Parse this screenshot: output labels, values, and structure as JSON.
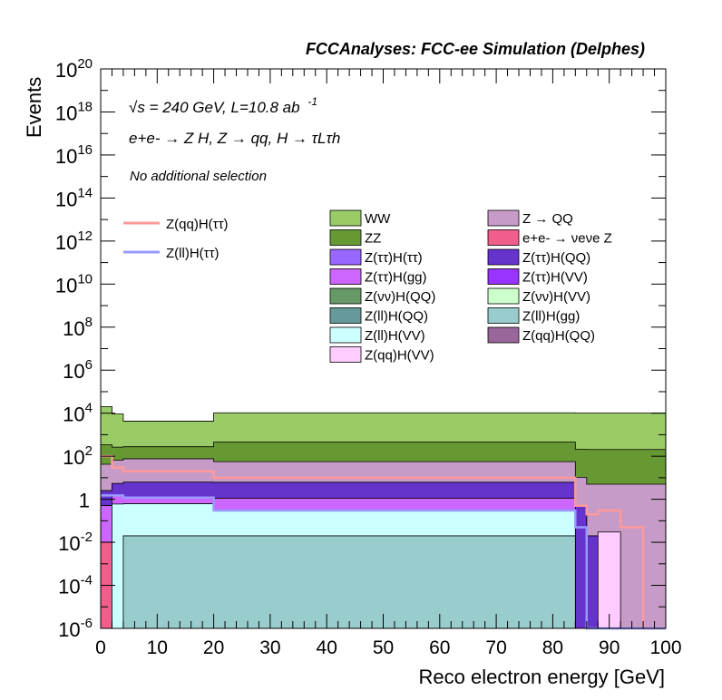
{
  "chart_data": {
    "type": "area",
    "title": "FCCAnalyses: FCC-ee Simulation (Delphes)",
    "xlabel": "Reco electron energy [GeV]",
    "ylabel": "Events",
    "xlim": [
      0,
      100
    ],
    "ylim": [
      1e-06,
      1e+20
    ],
    "yscale": "log",
    "x_ticks": [
      "0",
      "10",
      "20",
      "30",
      "40",
      "50",
      "60",
      "70",
      "80",
      "90",
      "100"
    ],
    "y_ticks": [
      {
        "base": "10",
        "exp": "20"
      },
      {
        "base": "10",
        "exp": "18"
      },
      {
        "base": "10",
        "exp": "16"
      },
      {
        "base": "10",
        "exp": "14"
      },
      {
        "base": "10",
        "exp": "12"
      },
      {
        "base": "10",
        "exp": "10"
      },
      {
        "base": "10",
        "exp": "8"
      },
      {
        "base": "10",
        "exp": "6"
      },
      {
        "base": "10",
        "exp": "4"
      },
      {
        "base": "10",
        "exp": "2"
      },
      {
        "base": "1",
        "exp": ""
      },
      {
        "base": "10",
        "exp": "-2"
      },
      {
        "base": "10",
        "exp": "-4"
      },
      {
        "base": "10",
        "exp": "-6"
      }
    ],
    "annotations": {
      "energy_lumi": "√s = 240 GeV, L=10.8 ab",
      "energy_lumi_exp": "-1",
      "process": "e+e- → Z H, Z → qq, H → τLτh",
      "selection": "No additional selection"
    },
    "legend_stack": [
      {
        "label": "WW",
        "color": "#99cc66"
      },
      {
        "label": "Z → QQ",
        "color": "#c79bc7"
      },
      {
        "label": "ZZ",
        "color": "#669933"
      },
      {
        "label": "e+e- → νeνe Z",
        "color": "#f25e8b"
      },
      {
        "label": "Z(ττ)H(ττ)",
        "color": "#9966ff"
      },
      {
        "label": "Z(ττ)H(QQ)",
        "color": "#6633cc"
      },
      {
        "label": "Z(ττ)H(gg)",
        "color": "#cc66ff"
      },
      {
        "label": "Z(ττ)H(VV)",
        "color": "#9933ff"
      },
      {
        "label": "Z(νν)H(QQ)",
        "color": "#669966"
      },
      {
        "label": "Z(νν)H(VV)",
        "color": "#ccffcc"
      },
      {
        "label": "Z(ll)H(QQ)",
        "color": "#669999"
      },
      {
        "label": "Z(ll)H(gg)",
        "color": "#99cccc"
      },
      {
        "label": "Z(ll)H(VV)",
        "color": "#ccffff"
      },
      {
        "label": "Z(qq)H(QQ)",
        "color": "#996699"
      },
      {
        "label": "Z(qq)H(VV)",
        "color": "#ffccff"
      }
    ],
    "legend_signal": [
      {
        "label": "Z(qq)H(ττ)",
        "color": "#ff9999"
      },
      {
        "label": "Z(ll)H(ττ)",
        "color": "#9999ff"
      }
    ],
    "x_edges": [
      0,
      2,
      4,
      20,
      84,
      86,
      88,
      92,
      96,
      98,
      100
    ],
    "stack": [
      {
        "name": "Z(ll)H(gg)",
        "color": "#99cccc",
        "values": [
          1e-07,
          1e-07,
          0.02,
          0.02,
          1e-07,
          1e-07,
          1e-07,
          1e-07,
          1e-07,
          1e-07
        ]
      },
      {
        "name": "e+e- → νeνe Z",
        "color": "#f25e8b",
        "values": [
          0.01,
          1e-07,
          1e-07,
          1e-07,
          1e-07,
          1e-07,
          1e-07,
          1e-07,
          1e-07,
          1e-07
        ]
      },
      {
        "name": "Z(ll)H(VV)",
        "color": "#ccffff",
        "values": [
          1e-07,
          0.6,
          0.6,
          0.3,
          1e-07,
          1e-07,
          1e-07,
          1e-07,
          1e-07,
          1e-07
        ]
      },
      {
        "name": "Z(ττ)H(gg)",
        "color": "#cc66ff",
        "values": [
          0.5,
          0.8,
          0.6,
          0.8,
          1e-07,
          1e-07,
          1e-07,
          1e-07,
          1e-07,
          1e-07
        ]
      },
      {
        "name": "Z(ττ)H(QQ)",
        "color": "#6633cc",
        "values": [
          2,
          4,
          5,
          5,
          0.5,
          0.02,
          1e-07,
          1e-07,
          1e-07,
          1e-07
        ]
      },
      {
        "name": "Z(qq)H(VV)",
        "color": "#ffccff",
        "values": [
          1e-07,
          1e-07,
          1e-07,
          1e-07,
          1e-07,
          1e-07,
          0.03,
          1e-07,
          1e-07,
          1e-07
        ]
      },
      {
        "name": "Z → QQ",
        "color": "#c79bc7",
        "values": [
          40,
          60,
          70,
          50,
          10,
          5,
          5,
          5,
          5,
          5
        ]
      },
      {
        "name": "ZZ",
        "color": "#669933",
        "values": [
          300,
          200,
          200,
          400,
          200,
          200,
          200,
          200,
          200,
          200
        ]
      },
      {
        "name": "WW",
        "color": "#99cc66",
        "values": [
          20000,
          9000,
          4000,
          10000,
          10000,
          10000,
          10000,
          10000,
          10000,
          10000
        ]
      }
    ],
    "signal": [
      {
        "name": "Z(qq)H(ττ)",
        "color": "#ff9999",
        "values": [
          100,
          30,
          20,
          10,
          0.5,
          0.2,
          0.3,
          0.05,
          1e-07,
          1e-07
        ]
      },
      {
        "name": "Z(ll)H(ττ)",
        "color": "#9999ff",
        "values": [
          1.5,
          1.5,
          1.2,
          0.3,
          0.05,
          1e-07,
          1e-07,
          1e-07,
          1e-07,
          1e-07
        ]
      }
    ]
  }
}
